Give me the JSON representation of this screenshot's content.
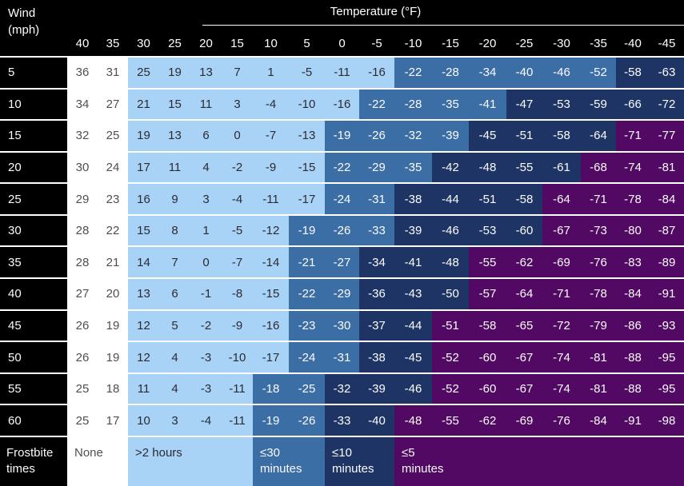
{
  "header": {
    "wind_line1": "Wind",
    "wind_line2": "(mph)",
    "temp_title": "Temperature (°F)"
  },
  "chart_data": {
    "type": "heatmap",
    "x_axis_label": "Temperature (°F)",
    "y_axis_label": "Wind (mph)",
    "columns": [
      40,
      35,
      30,
      25,
      20,
      15,
      10,
      5,
      0,
      -5,
      -10,
      -15,
      -20,
      -25,
      -30,
      -35,
      -40,
      -45
    ],
    "category_meaning": {
      "w": "None",
      "l": ">2 hours",
      "m": "≤30 minutes",
      "n": "≤10 minutes",
      "p": "≤5 minutes"
    },
    "rows": [
      {
        "wind": "5",
        "values": [
          36,
          31,
          25,
          19,
          13,
          7,
          1,
          -5,
          -11,
          -16,
          -22,
          -28,
          -34,
          -40,
          -46,
          -52,
          -58,
          -63
        ],
        "cats": "wwllllllllmmmmmmnn"
      },
      {
        "wind": "10",
        "values": [
          34,
          27,
          21,
          15,
          11,
          3,
          -4,
          -10,
          -16,
          -22,
          -28,
          -35,
          -41,
          -47,
          -53,
          -59,
          -66,
          -72
        ],
        "cats": "wwlllllllmmmmnnnnn"
      },
      {
        "wind": "15",
        "values": [
          32,
          25,
          19,
          13,
          6,
          0,
          -7,
          -13,
          -19,
          -26,
          -32,
          -39,
          -45,
          -51,
          -58,
          -64,
          -71,
          -77
        ],
        "cats": "wwllllllmmmmnnnnpp"
      },
      {
        "wind": "20",
        "values": [
          30,
          24,
          17,
          11,
          4,
          -2,
          -9,
          -15,
          -22,
          -29,
          -35,
          -42,
          -48,
          -55,
          -61,
          -68,
          -74,
          -81
        ],
        "cats": "wwllllllmmmnnnnppp"
      },
      {
        "wind": "25",
        "values": [
          29,
          23,
          16,
          9,
          3,
          -4,
          -11,
          -17,
          -24,
          -31,
          -38,
          -44,
          -51,
          -58,
          -64,
          -71,
          -78,
          -84
        ],
        "cats": "wwllllllmmnnnnpppp"
      },
      {
        "wind": "30",
        "values": [
          28,
          22,
          15,
          8,
          1,
          -5,
          -12,
          -19,
          -26,
          -33,
          -39,
          -46,
          -53,
          -60,
          -67,
          -73,
          -80,
          -87
        ],
        "cats": "wwlllllmmmnnnnpppp"
      },
      {
        "wind": "35",
        "values": [
          28,
          21,
          14,
          7,
          0,
          -7,
          -14,
          -21,
          -27,
          -34,
          -41,
          -48,
          -55,
          -62,
          -69,
          -76,
          -83,
          -89
        ],
        "cats": "wwlllllmmnnnpppppp"
      },
      {
        "wind": "40",
        "values": [
          27,
          20,
          13,
          6,
          -1,
          -8,
          -15,
          -22,
          -29,
          -36,
          -43,
          -50,
          -57,
          -64,
          -71,
          -78,
          -84,
          -91
        ],
        "cats": "wwlllllmmnnnpppppp"
      },
      {
        "wind": "45",
        "values": [
          26,
          19,
          12,
          5,
          -2,
          -9,
          -16,
          -23,
          -30,
          -37,
          -44,
          -51,
          -58,
          -65,
          -72,
          -79,
          -86,
          -93
        ],
        "cats": "wwlllllmmnnppppppp"
      },
      {
        "wind": "50",
        "values": [
          26,
          19,
          12,
          4,
          -3,
          -10,
          -17,
          -24,
          -31,
          -38,
          -45,
          -52,
          -60,
          -67,
          -74,
          -81,
          -88,
          -95
        ],
        "cats": "wwlllllmmnnppppppp"
      },
      {
        "wind": "55",
        "values": [
          25,
          18,
          11,
          4,
          -3,
          -11,
          -18,
          -25,
          -32,
          -39,
          -46,
          -52,
          -60,
          -67,
          -74,
          -81,
          -88,
          -95
        ],
        "cats": "wwllllmmnnnppppppp"
      },
      {
        "wind": "60",
        "values": [
          25,
          17,
          10,
          3,
          -4,
          -11,
          -19,
          -26,
          -33,
          -40,
          -48,
          -55,
          -62,
          -69,
          -76,
          -84,
          -91,
          -98
        ],
        "cats": "wwllllmmnnpppppppp"
      }
    ]
  },
  "legend": {
    "title_line1": "Frostbite",
    "title_line2": "times",
    "items": [
      {
        "line1": "None",
        "line2": "",
        "cat": "w"
      },
      {
        "line1": ">2 hours",
        "line2": "",
        "cat": "l"
      },
      {
        "line1": "≤30",
        "line2": "minutes",
        "cat": "m"
      },
      {
        "line1": "≤10",
        "line2": "minutes",
        "cat": "n"
      },
      {
        "line1": "≤5",
        "line2": "minutes",
        "cat": "p"
      }
    ]
  },
  "colors": {
    "background": "#000000",
    "separator": "#ffffff",
    "none": "#ffffff",
    "gt2h": "#a9d3f6",
    "le30": "#3c6ea6",
    "le10": "#1e3464",
    "le5": "#520963",
    "text_on_none": "#4f4f4f",
    "text_on_gt2h": "#2b2b33",
    "text_on_dark": "#fbfbfb"
  }
}
